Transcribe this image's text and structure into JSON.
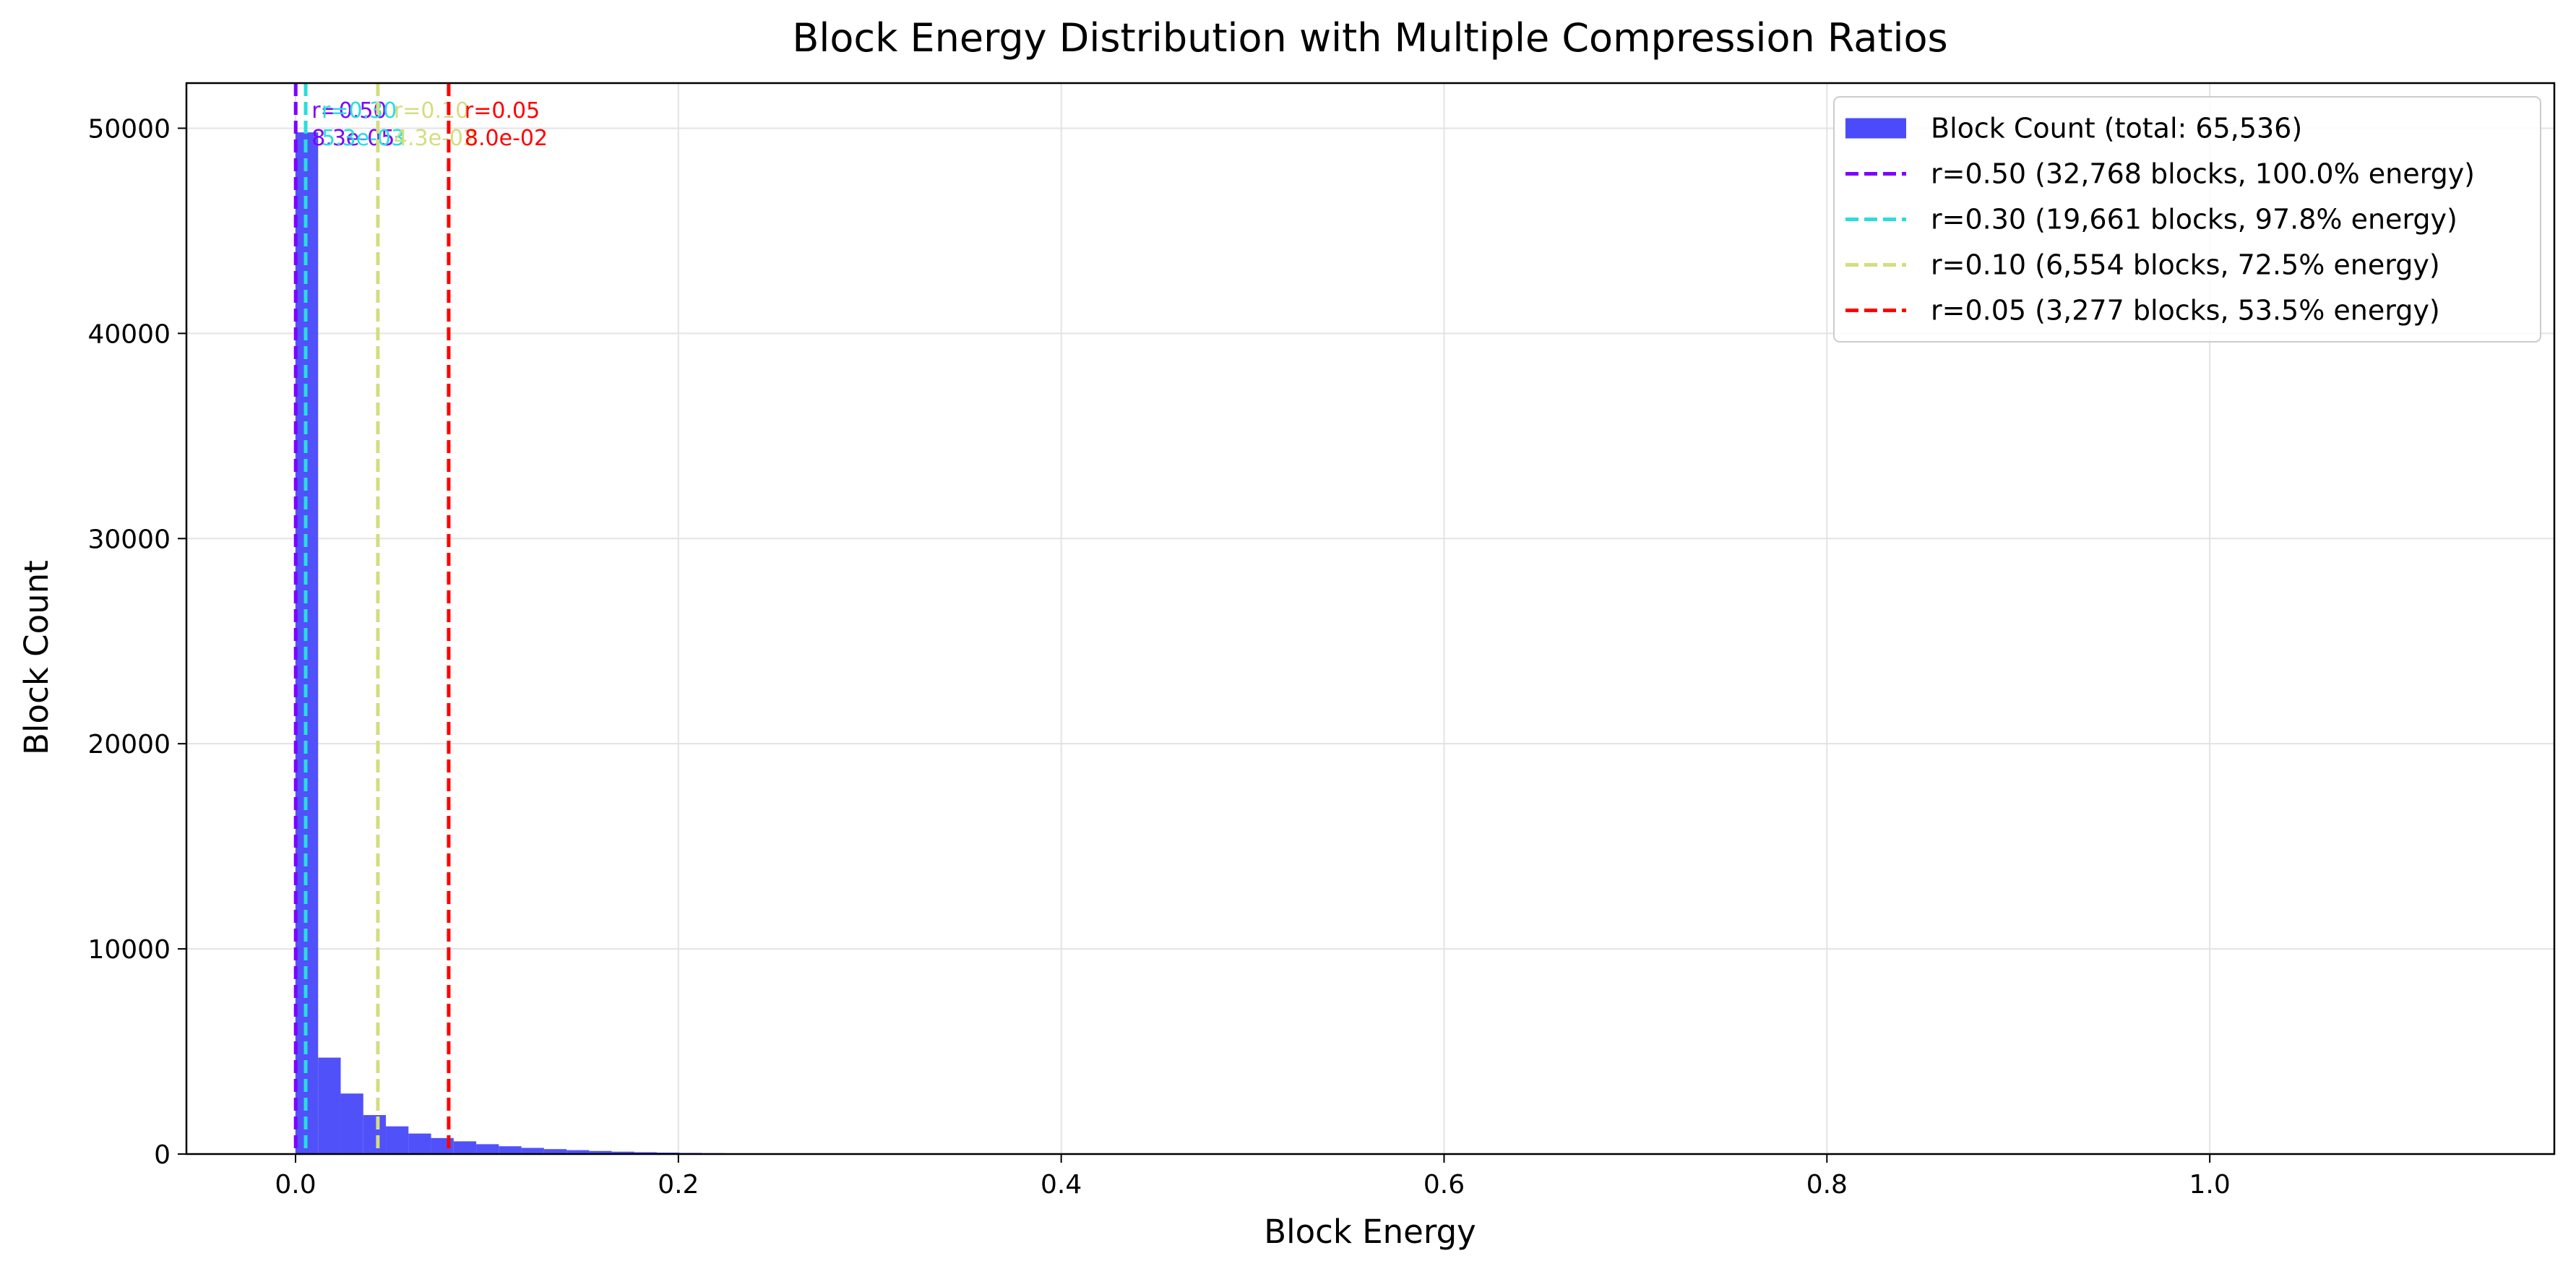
{
  "chart_data": {
    "type": "bar",
    "title": "Block Energy Distribution with Multiple Compression Ratios",
    "xlabel": "Block Energy",
    "ylabel": "Block Count",
    "xlim": [
      -0.057,
      1.18
    ],
    "ylim": [
      0,
      52200
    ],
    "xticks": [
      0.0,
      0.2,
      0.4,
      0.6,
      0.8,
      1.0
    ],
    "xtick_labels": [
      "0.0",
      "0.2",
      "0.4",
      "0.6",
      "0.8",
      "1.0"
    ],
    "yticks": [
      0,
      10000,
      20000,
      30000,
      40000,
      50000
    ],
    "ytick_labels": [
      "0",
      "10000",
      "20000",
      "30000",
      "40000",
      "50000"
    ],
    "grid": true,
    "legend_position": "top-right",
    "histogram": {
      "name": "Block Count (total: 65,536)",
      "color": "#4b4bfa",
      "bin_width": 0.0118,
      "bin_start": 0.0,
      "counts": [
        49800,
        4700,
        2950,
        1900,
        1350,
        1000,
        780,
        620,
        480,
        380,
        300,
        240,
        190,
        150,
        115,
        90,
        70,
        55,
        42,
        32,
        24,
        18,
        14,
        10,
        8,
        6,
        5,
        4,
        3,
        2
      ]
    },
    "thresholds": [
      {
        "name": "r=0.50 (32,768 blocks, 100.0% energy)",
        "ratio_label": "r=0.50",
        "value_label": "8.3e-05",
        "x": 8.33e-05,
        "color": "#7f00ff"
      },
      {
        "name": "r=0.30 (19,661 blocks, 97.8% energy)",
        "ratio_label": "r=0.30",
        "value_label": "5.3e-03",
        "x": 0.0053,
        "color": "#2adddd"
      },
      {
        "name": "r=0.10 (6,554 blocks, 72.5% energy)",
        "ratio_label": "r=0.10",
        "value_label": "4.3e-02",
        "x": 0.043,
        "color": "#d4dd80"
      },
      {
        "name": "r=0.05 (3,277 blocks, 53.5% energy)",
        "ratio_label": "r=0.05",
        "value_label": "8.0e-02",
        "x": 0.08,
        "color": "#ff0000"
      }
    ]
  }
}
